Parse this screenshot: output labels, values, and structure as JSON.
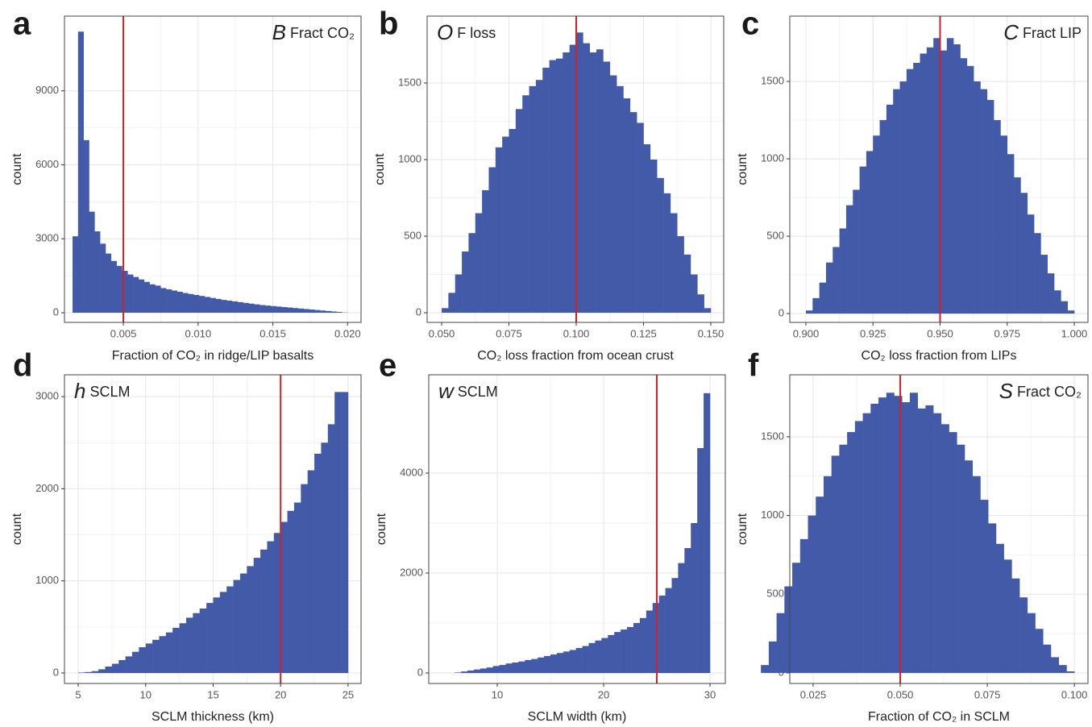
{
  "chart_data": [
    {
      "type": "histogram",
      "panel_label": "a",
      "annotation": {
        "symbol": "B",
        "text": "Fract CO₂"
      },
      "xlabel": "Fraction of CO₂ in ridge/LIP basalts",
      "ylabel": "count",
      "color": "#425aa8",
      "vline": 0.005,
      "vline_color": "#d42027",
      "grid": true,
      "xlim": [
        0.00106,
        0.0209
      ],
      "ylim": [
        -392,
        12030
      ],
      "xticks": [
        0.005,
        {
          "value": 0.01,
          "label": "0.010"
        },
        0.015,
        {
          "value": 0.02,
          "label": "0.020"
        }
      ],
      "yticks": [
        0,
        3000,
        6000,
        9000
      ],
      "bins": [
        0.0016,
        0.001968,
        0.002336,
        0.002704,
        0.003072,
        0.00344,
        0.003808,
        0.004176,
        0.004544,
        0.004912,
        0.00528,
        0.005648,
        0.006016,
        0.006384,
        0.006752,
        0.00712,
        0.007488,
        0.007856,
        0.008224,
        0.008592,
        0.00896,
        0.009328,
        0.009696,
        0.010064,
        0.010432,
        0.0108,
        0.011168,
        0.011536,
        0.011904,
        0.012272,
        0.01264,
        0.013008,
        0.013376,
        0.013744,
        0.014112,
        0.01448,
        0.014848,
        0.015216,
        0.015584,
        0.015952,
        0.01632,
        0.016688,
        0.017056,
        0.017424,
        0.017792,
        0.01816,
        0.018528,
        0.018896,
        0.019264,
        0.019632,
        0.02
      ],
      "counts": [
        3100,
        11400,
        7000,
        4100,
        3300,
        2800,
        2400,
        2100,
        1900,
        1700,
        1550,
        1450,
        1350,
        1250,
        1150,
        1100,
        1000,
        950,
        900,
        850,
        800,
        760,
        720,
        680,
        640,
        600,
        560,
        520,
        490,
        460,
        430,
        400,
        370,
        340,
        310,
        290,
        270,
        250,
        230,
        210,
        190,
        170,
        150,
        130,
        110,
        90,
        70,
        50,
        30,
        10
      ]
    },
    {
      "type": "histogram",
      "panel_label": "b",
      "annotation": {
        "symbol": "O",
        "text": "F loss"
      },
      "xlabel": "CO₂ loss fraction from ocean crust",
      "ylabel": "count",
      "color": "#425aa8",
      "vline": 0.1,
      "vline_color": "#d42027",
      "grid": true,
      "xlim": [
        0.0446,
        0.1548
      ],
      "ylim": [
        -63,
        1937
      ],
      "xticks": [
        {
          "value": 0.05,
          "label": "0.050"
        },
        0.075,
        {
          "value": 0.1,
          "label": "0.100"
        },
        0.125,
        {
          "value": 0.15,
          "label": "0.150"
        }
      ],
      "yticks": [
        0,
        500,
        1000,
        1500
      ],
      "bins": [
        0.05,
        0.0525,
        0.055,
        0.0575,
        0.06,
        0.0625,
        0.065,
        0.0675,
        0.07,
        0.0725,
        0.075,
        0.0775,
        0.08,
        0.0825,
        0.085,
        0.0875,
        0.09,
        0.0925,
        0.095,
        0.0975,
        0.1,
        0.1025,
        0.105,
        0.1075,
        0.11,
        0.1125,
        0.115,
        0.1175,
        0.12,
        0.1225,
        0.125,
        0.1275,
        0.13,
        0.1325,
        0.135,
        0.1375,
        0.14,
        0.1425,
        0.145,
        0.1475,
        0.15
      ],
      "counts": [
        30,
        130,
        250,
        400,
        520,
        650,
        800,
        950,
        1080,
        1150,
        1200,
        1330,
        1420,
        1480,
        1520,
        1600,
        1650,
        1660,
        1700,
        1750,
        1830,
        1760,
        1700,
        1720,
        1640,
        1550,
        1480,
        1400,
        1310,
        1240,
        1100,
        1000,
        880,
        780,
        650,
        500,
        380,
        250,
        120,
        30
      ]
    },
    {
      "type": "histogram",
      "panel_label": "c",
      "annotation": {
        "symbol": "C",
        "text": "Fract LIP"
      },
      "xlabel": "CO₂ loss fraction from LIPs",
      "ylabel": "count",
      "color": "#425aa8",
      "vline": 0.95,
      "vline_color": "#d42027",
      "grid": true,
      "xlim": [
        0.894,
        1.0051
      ],
      "ylim": [
        -57,
        1922
      ],
      "xticks": [
        {
          "value": 0.9,
          "label": "0.900"
        },
        0.925,
        {
          "value": 0.95,
          "label": "0.950"
        },
        0.975,
        {
          "value": 1.0,
          "label": "1.000"
        }
      ],
      "yticks": [
        0,
        500,
        1000,
        1500
      ],
      "bins": [
        0.9,
        0.9025,
        0.905,
        0.9075,
        0.91,
        0.9125,
        0.915,
        0.9175,
        0.92,
        0.9225,
        0.925,
        0.9275,
        0.93,
        0.9325,
        0.935,
        0.9375,
        0.94,
        0.9425,
        0.945,
        0.9475,
        0.95,
        0.9525,
        0.955,
        0.9575,
        0.96,
        0.9625,
        0.965,
        0.9675,
        0.97,
        0.9725,
        0.975,
        0.9775,
        0.98,
        0.9825,
        0.985,
        0.9875,
        0.99,
        0.9925,
        0.995,
        0.9975,
        1.0
      ],
      "counts": [
        20,
        100,
        200,
        330,
        430,
        550,
        700,
        800,
        950,
        1050,
        1150,
        1250,
        1350,
        1450,
        1500,
        1580,
        1620,
        1680,
        1720,
        1780,
        1700,
        1780,
        1740,
        1650,
        1600,
        1500,
        1450,
        1380,
        1250,
        1150,
        1030,
        880,
        780,
        640,
        520,
        380,
        260,
        150,
        80,
        20
      ]
    },
    {
      "type": "histogram",
      "panel_label": "d",
      "annotation": {
        "symbol": "h",
        "text": "SCLM"
      },
      "xlabel": "SCLM thickness (km)",
      "ylabel": "count",
      "color": "#425aa8",
      "vline": 20,
      "vline_color": "#d42027",
      "grid": true,
      "xlim": [
        3.985,
        25.96
      ],
      "ylim": [
        -114,
        3237
      ],
      "xticks": [
        5,
        10,
        15,
        20,
        25
      ],
      "yticks": [
        0,
        1000,
        2000,
        3000
      ],
      "bins": [
        5,
        5.5,
        6,
        6.5,
        7,
        7.5,
        8,
        8.5,
        9,
        9.5,
        10,
        10.5,
        11,
        11.5,
        12,
        12.5,
        13,
        13.5,
        14,
        14.5,
        15,
        15.5,
        16,
        16.5,
        17,
        17.5,
        18,
        18.5,
        19,
        19.5,
        20,
        20.5,
        21,
        21.5,
        22,
        22.5,
        23,
        23.5,
        24,
        24.5,
        25
      ],
      "counts": [
        5,
        10,
        20,
        40,
        70,
        100,
        140,
        180,
        230,
        280,
        320,
        360,
        400,
        440,
        490,
        540,
        600,
        650,
        700,
        760,
        820,
        880,
        940,
        1010,
        1080,
        1160,
        1250,
        1340,
        1430,
        1520,
        1640,
        1760,
        1850,
        2050,
        2200,
        2380,
        2500,
        2700,
        3050,
        3050
      ]
    },
    {
      "type": "histogram",
      "panel_label": "e",
      "annotation": {
        "symbol": "w",
        "text": "SCLM"
      },
      "xlabel": "SCLM width (km)",
      "ylabel": "count",
      "color": "#425aa8",
      "vline": 25,
      "vline_color": "#d42027",
      "grid": true,
      "xlim": [
        3.56,
        31.44
      ],
      "ylim": [
        -210,
        5968
      ],
      "xticks": [
        10,
        20,
        30
      ],
      "yticks": [
        0,
        2000,
        4000
      ],
      "bins": [
        6,
        6.6,
        7.2,
        7.8,
        8.4,
        9,
        9.6,
        10.2,
        10.8,
        11.4,
        12,
        12.6,
        13.2,
        13.8,
        14.4,
        15,
        15.6,
        16.2,
        16.8,
        17.4,
        18,
        18.6,
        19.2,
        19.8,
        20.4,
        21,
        21.6,
        22.2,
        22.8,
        23.4,
        24,
        24.6,
        25.2,
        25.8,
        26.4,
        27,
        27.6,
        28.2,
        28.8,
        29.4,
        30
      ],
      "counts": [
        10,
        30,
        50,
        70,
        90,
        110,
        140,
        160,
        190,
        210,
        230,
        260,
        280,
        310,
        340,
        370,
        400,
        430,
        460,
        500,
        540,
        600,
        650,
        700,
        760,
        820,
        870,
        920,
        1000,
        1100,
        1250,
        1400,
        1550,
        1700,
        1900,
        2200,
        2500,
        3000,
        4500,
        5600
      ]
    },
    {
      "type": "histogram",
      "panel_label": "f",
      "annotation": {
        "symbol": "S",
        "text": "Fract CO₂"
      },
      "xlabel": "Fraction of CO₂ in SCLM",
      "ylabel": "count",
      "color": "#425aa8",
      "vline": 0.05,
      "vline_color": "#d42027",
      "grid": true,
      "xlim": [
        0.01829,
        0.1039
      ],
      "ylim": [
        -67,
        1894
      ],
      "xticks": [
        0.025,
        {
          "value": 0.05,
          "label": "0.050"
        },
        0.075,
        {
          "value": 0.1,
          "label": "0.100"
        }
      ],
      "yticks": [
        0,
        500,
        1000,
        1500
      ],
      "bins": [
        0.01,
        0.01225,
        0.0145,
        0.01675,
        0.019,
        0.02125,
        0.0235,
        0.02575,
        0.028,
        0.03025,
        0.0325,
        0.03475,
        0.037,
        0.03925,
        0.0415,
        0.04375,
        0.046,
        0.04825,
        0.0505,
        0.05275,
        0.055,
        0.05725,
        0.0595,
        0.06175,
        0.064,
        0.06625,
        0.0685,
        0.07075,
        0.073,
        0.07525,
        0.0775,
        0.07975,
        0.082,
        0.08425,
        0.0865,
        0.08875,
        0.091,
        0.09325,
        0.0955,
        0.09775,
        0.1
      ],
      "counts": [
        50,
        200,
        380,
        550,
        700,
        850,
        1000,
        1120,
        1250,
        1380,
        1450,
        1530,
        1600,
        1650,
        1710,
        1750,
        1780,
        1760,
        1720,
        1780,
        1680,
        1700,
        1650,
        1580,
        1530,
        1450,
        1350,
        1250,
        1100,
        950,
        820,
        720,
        600,
        480,
        380,
        280,
        180,
        100,
        50,
        10
      ]
    }
  ]
}
